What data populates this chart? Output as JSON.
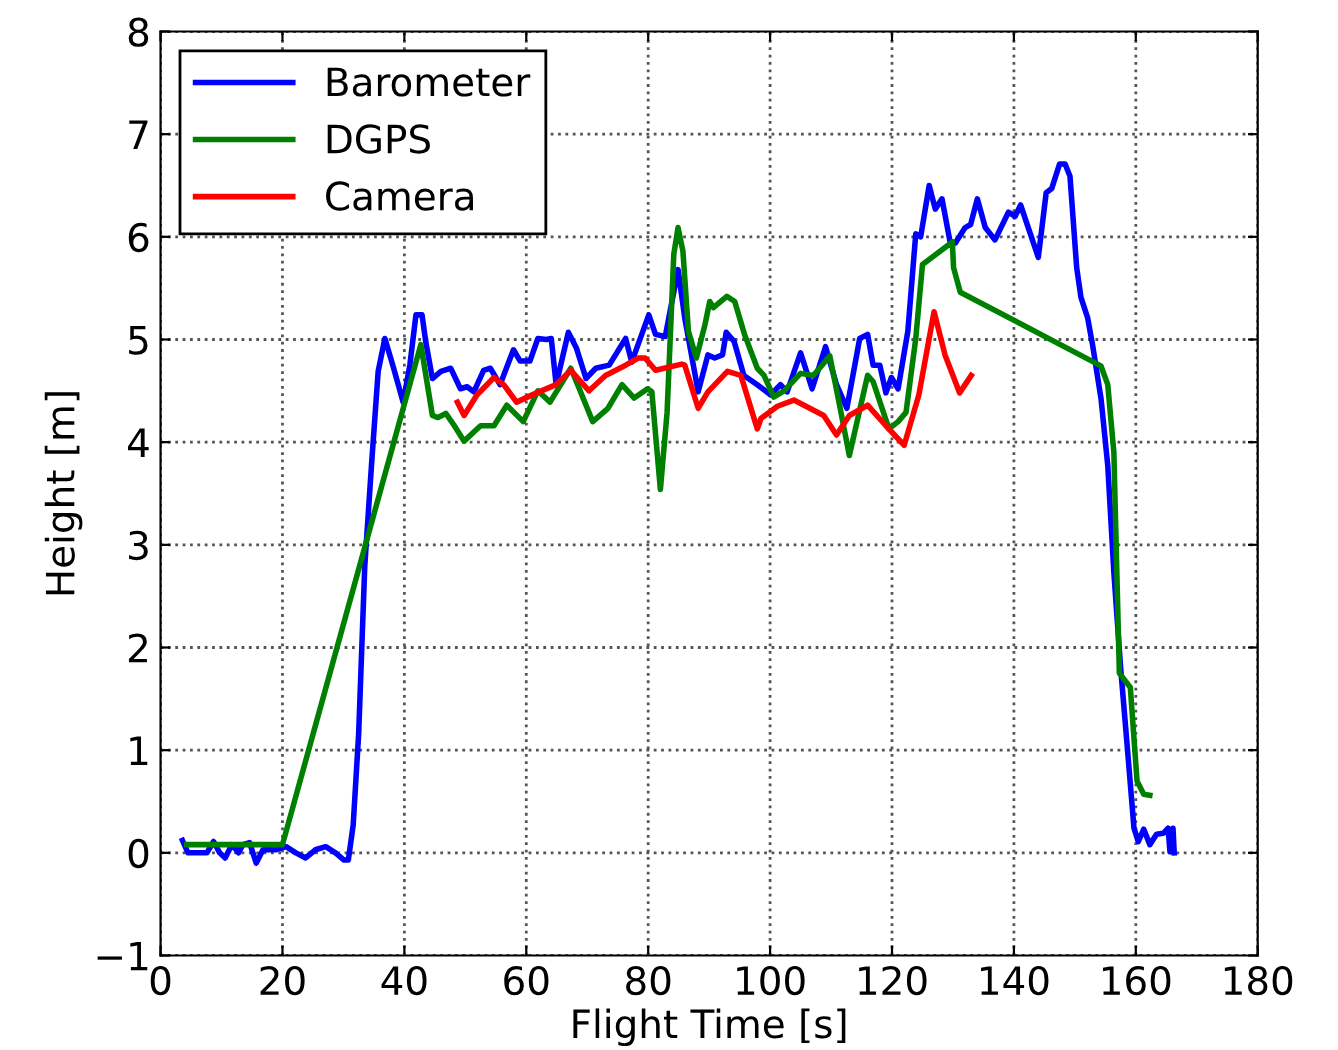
{
  "chart_data": {
    "type": "line",
    "xlabel": "Flight Time [s]",
    "ylabel": "Height [m]",
    "xlim": [
      0,
      180
    ],
    "xticks": [
      0,
      20,
      40,
      60,
      80,
      100,
      120,
      140,
      160,
      180
    ],
    "ylim": [
      -1,
      8
    ],
    "yticks": [
      {
        "value": -1,
        "label": "−1"
      },
      0,
      1,
      2,
      3,
      4,
      5,
      6,
      7,
      8
    ],
    "grid": true,
    "legend": "top left",
    "line_style": "solid",
    "marker": "none",
    "series": [
      {
        "name": "Barometer",
        "color": "#0000ff",
        "x": [
          3.6,
          4.5,
          7.6,
          8.7,
          9.7,
          10.6,
          11.7,
          12.8,
          13.5,
          14.6,
          15.7,
          16.8,
          18.9,
          20.6,
          22.2,
          23.8,
          25.4,
          27.1,
          28.7,
          30.1,
          30.8,
          31.6,
          32.5,
          33.5,
          34.6,
          35.7,
          36.8,
          38.1,
          39.8,
          40.9,
          41.9,
          42.9,
          43.5,
          44.6,
          46,
          47.6,
          49.2,
          50.3,
          51.4,
          53,
          54.1,
          55.7,
          57.9,
          59,
          60.6,
          61.9,
          63.3,
          64.1,
          64.9,
          66.9,
          68.2,
          69.8,
          71.4,
          73.6,
          76.3,
          77.3,
          80.1,
          81.2,
          82.8,
          84.9,
          86,
          88.2,
          89.8,
          90.9,
          92.2,
          92.8,
          94.1,
          95.7,
          97.9,
          100.1,
          101.7,
          102.8,
          105,
          106.9,
          109.1,
          110.9,
          112.6,
          114.7,
          116,
          116.9,
          118,
          119,
          119.9,
          121,
          122.6,
          123.9,
          124.7,
          126.1,
          127.1,
          128.2,
          129.5,
          130.4,
          132,
          132.9,
          134,
          135.3,
          136.9,
          139.1,
          140.2,
          141.1,
          144,
          145.3,
          146.2,
          147.5,
          148.4,
          149.2,
          150.3,
          151,
          152.1,
          152.9,
          154.3,
          155.4,
          156.4,
          157.5,
          158.6,
          159.7,
          160.4,
          161.3,
          162.3,
          163.4,
          164.5,
          165.3,
          165.6,
          166.1,
          166.3
        ],
        "values": [
          0.12,
          0,
          0,
          0.11,
          0,
          -0.05,
          0.08,
          0,
          0.08,
          0.1,
          -0.1,
          0.03,
          0.03,
          0.06,
          0,
          -0.05,
          0.03,
          0.06,
          0,
          -0.07,
          -0.07,
          0.27,
          1.16,
          2.79,
          3.77,
          4.69,
          5.01,
          4.75,
          4.39,
          4.75,
          5.24,
          5.24,
          4.98,
          4.62,
          4.69,
          4.72,
          4.52,
          4.54,
          4.49,
          4.7,
          4.72,
          4.56,
          4.9,
          4.79,
          4.79,
          5.01,
          5.0,
          5.01,
          4.56,
          5.07,
          4.92,
          4.62,
          4.72,
          4.75,
          5.01,
          4.78,
          5.24,
          5.05,
          5.03,
          5.68,
          5.21,
          4.49,
          4.85,
          4.82,
          4.85,
          5.07,
          4.98,
          4.65,
          4.56,
          4.46,
          4.56,
          4.49,
          4.87,
          4.52,
          4.93,
          4.56,
          4.33,
          5.01,
          5.05,
          4.75,
          4.75,
          4.48,
          4.63,
          4.52,
          5.08,
          6.03,
          6.0,
          6.5,
          6.27,
          6.37,
          5.96,
          5.94,
          6.09,
          6.12,
          6.37,
          6.09,
          5.97,
          6.24,
          6.2,
          6.31,
          5.8,
          6.43,
          6.47,
          6.71,
          6.71,
          6.59,
          5.7,
          5.41,
          5.21,
          4.95,
          4.42,
          3.77,
          2.73,
          1.81,
          1.03,
          0.24,
          0.11,
          0.23,
          0.08,
          0.18,
          0.19,
          0.24,
          0.01,
          0.24,
          0
        ]
      },
      {
        "name": "DGPS",
        "color": "#008000",
        "x": [
          4.3,
          20,
          42.7,
          44.6,
          45.5,
          46.8,
          48.2,
          49.8,
          51.4,
          52.5,
          54.7,
          56.8,
          59.5,
          61.9,
          63.9,
          67.3,
          68.7,
          70.9,
          73.4,
          75.7,
          77.7,
          79.9,
          80.6,
          82,
          83.1,
          84.2,
          84.9,
          85.7,
          86.6,
          87.9,
          89.3,
          90.1,
          90.7,
          92.9,
          94.2,
          95.8,
          97.9,
          99,
          100.6,
          102.3,
          105,
          107.1,
          109.8,
          111.4,
          113,
          116,
          116.9,
          119.5,
          121,
          122.3,
          123.9,
          125,
          129.9,
          130.1,
          131.2,
          153.1,
          154.3,
          155.4,
          156.4,
          157.3,
          159.1,
          160.2,
          161.3,
          162.3
        ],
        "values": [
          0.08,
          0.08,
          4.95,
          4.26,
          4.24,
          4.28,
          4.16,
          4.01,
          4.1,
          4.16,
          4.16,
          4.36,
          4.2,
          4.5,
          4.39,
          4.72,
          4.52,
          4.2,
          4.33,
          4.56,
          4.43,
          4.52,
          4.49,
          3.54,
          4.29,
          5.83,
          6.09,
          5.86,
          5.08,
          4.82,
          5.14,
          5.37,
          5.31,
          5.42,
          5.37,
          5.05,
          4.72,
          4.65,
          4.44,
          4.5,
          4.67,
          4.65,
          4.84,
          4.36,
          3.87,
          4.65,
          4.59,
          4.13,
          4.2,
          4.29,
          5.01,
          5.73,
          5.95,
          5.7,
          5.46,
          4.78,
          4.74,
          4.56,
          3.9,
          1.75,
          1.61,
          0.7,
          0.57,
          0.56
        ]
      },
      {
        "name": "Camera",
        "color": "#ff0000",
        "x": [
          48.7,
          49.8,
          51.9,
          54.7,
          56.3,
          58.4,
          61.7,
          64.9,
          67.3,
          70.3,
          73,
          76.3,
          78.4,
          79.5,
          81.2,
          85.5,
          86,
          88.2,
          89.8,
          93,
          95.2,
          97.9,
          98.5,
          101.2,
          103.9,
          108.8,
          110.9,
          113,
          116,
          119,
          122,
          124.4,
          126.9,
          128.7,
          131.1,
          133
        ],
        "values": [
          4.39,
          4.26,
          4.46,
          4.63,
          4.56,
          4.39,
          4.48,
          4.56,
          4.7,
          4.5,
          4.65,
          4.75,
          4.82,
          4.82,
          4.7,
          4.76,
          4.75,
          4.33,
          4.49,
          4.69,
          4.65,
          4.13,
          4.23,
          4.35,
          4.41,
          4.26,
          4.07,
          4.26,
          4.36,
          4.16,
          3.97,
          4.46,
          5.27,
          4.85,
          4.48,
          4.65
        ]
      }
    ]
  }
}
